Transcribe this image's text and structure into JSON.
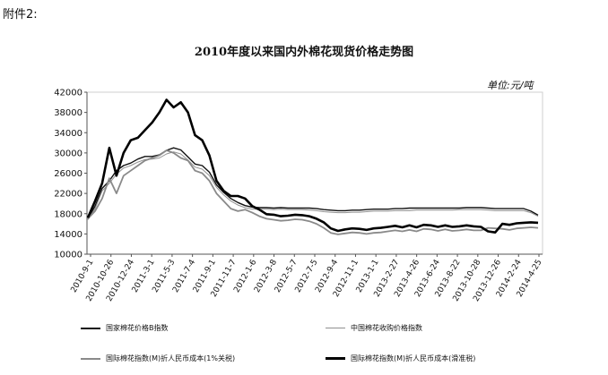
{
  "attachment_label": "附件2:",
  "chart_data": {
    "type": "line",
    "title": "2010年度以来国内外棉花现货价格走势图",
    "unit_label": "单位:元/吨",
    "xlabel": "",
    "ylabel": "",
    "ylim": [
      10000,
      42000
    ],
    "yticks": [
      10000,
      14000,
      18000,
      22000,
      26000,
      30000,
      34000,
      38000,
      42000
    ],
    "ytick_labels": [
      "10000",
      "14000",
      "18000",
      "22000",
      "26000",
      "30000",
      "34000",
      "38000",
      "42000"
    ],
    "x_tick_labels": [
      "2010-9-1",
      "2010-10-26",
      "2010-12-24",
      "2011-3-1",
      "2011-5-3",
      "2011-7-4",
      "2011-9-1",
      "2011-11-7",
      "2012-1-6",
      "2012-3-8",
      "2012-5-7",
      "2012-7-5",
      "2012-9-4",
      "2012-11-1",
      "2013-1-1",
      "2013-2-27",
      "2013-4-26",
      "2013-6-24",
      "2013-8-22",
      "2013-10-28",
      "2013-12-26",
      "2014-2-24",
      "2014-4-25"
    ],
    "grid": false,
    "legend_position": "bottom",
    "series": [
      {
        "name": "国家棉花价格B指数",
        "color": "#111111",
        "line": "solid",
        "width": 1.4,
        "values": [
          17000,
          19500,
          23000,
          24500,
          26500,
          27500,
          28000,
          28800,
          29300,
          29300,
          29600,
          30500,
          31000,
          30600,
          29200,
          27800,
          27500,
          26200,
          23700,
          22200,
          21000,
          20200,
          19600,
          19300,
          19200,
          19200,
          19100,
          19200,
          19100,
          19100,
          19100,
          19100,
          19000,
          18800,
          18700,
          18600,
          18600,
          18700,
          18700,
          18800,
          18900,
          18900,
          18900,
          19000,
          19000,
          19100,
          19100,
          19100,
          19100,
          19100,
          19100,
          19100,
          19100,
          19200,
          19200,
          19200,
          19100,
          19000,
          19000,
          19000,
          19000,
          19000,
          18500,
          17700
        ]
      },
      {
        "name": "中国棉花收购价格指数",
        "color": "#909090",
        "line": "solid",
        "width": 1.0,
        "values": [
          16800,
          19000,
          22500,
          24000,
          25800,
          27000,
          27500,
          28200,
          28700,
          28800,
          29000,
          29800,
          30200,
          29800,
          28600,
          27200,
          26800,
          25500,
          23200,
          21700,
          20500,
          19700,
          19200,
          18900,
          18900,
          18900,
          18800,
          18900,
          18800,
          18800,
          18800,
          18700,
          18600,
          18400,
          18300,
          18200,
          18200,
          18300,
          18300,
          18400,
          18500,
          18500,
          18500,
          18600,
          18600,
          18600,
          18700,
          18700,
          18700,
          18700,
          18700,
          18700,
          18800,
          18800,
          18800,
          18800,
          18700,
          18600,
          18600,
          18600,
          18600,
          18600,
          18200,
          17500
        ]
      },
      {
        "name": "国际棉花指数(M)折人民币成本(1%关税)",
        "color": "#8a8a8a",
        "line": "solid",
        "width": 1.8,
        "values": [
          17000,
          18500,
          21000,
          25000,
          22000,
          25500,
          26500,
          27500,
          28500,
          29000,
          29500,
          30500,
          30000,
          29000,
          28500,
          26500,
          26000,
          24500,
          22000,
          20500,
          19000,
          18500,
          18800,
          18200,
          17500,
          17000,
          16800,
          16600,
          16700,
          16900,
          16800,
          16500,
          16000,
          15200,
          14200,
          13900,
          14100,
          14300,
          14200,
          14000,
          14200,
          14300,
          14500,
          14700,
          14500,
          14800,
          14500,
          15000,
          14900,
          14600,
          14900,
          14600,
          14700,
          14900,
          14700,
          14700,
          15200,
          15100,
          15000,
          14800,
          15100,
          15200,
          15300,
          15200
        ]
      },
      {
        "name": "国际棉花指数(M)折人民币成本(滑准税)",
        "color": "#000000",
        "line": "solid",
        "width": 2.6,
        "values": [
          17200,
          20500,
          24000,
          31000,
          25500,
          30000,
          32500,
          33000,
          34500,
          36000,
          38000,
          40500,
          39000,
          40000,
          38000,
          33500,
          32500,
          29500,
          24500,
          22500,
          21500,
          21500,
          21000,
          19500,
          18800,
          17900,
          17800,
          17500,
          17600,
          17800,
          17700,
          17500,
          17000,
          16300,
          15100,
          14600,
          14900,
          15100,
          15000,
          14800,
          15100,
          15200,
          15400,
          15600,
          15300,
          15700,
          15300,
          15800,
          15700,
          15400,
          15700,
          15400,
          15500,
          15700,
          15500,
          15400,
          14500,
          14300,
          16000,
          15800,
          16100,
          16200,
          16300,
          16200
        ]
      }
    ]
  },
  "icons": {
    "legend_swatch": "line-swatch"
  }
}
